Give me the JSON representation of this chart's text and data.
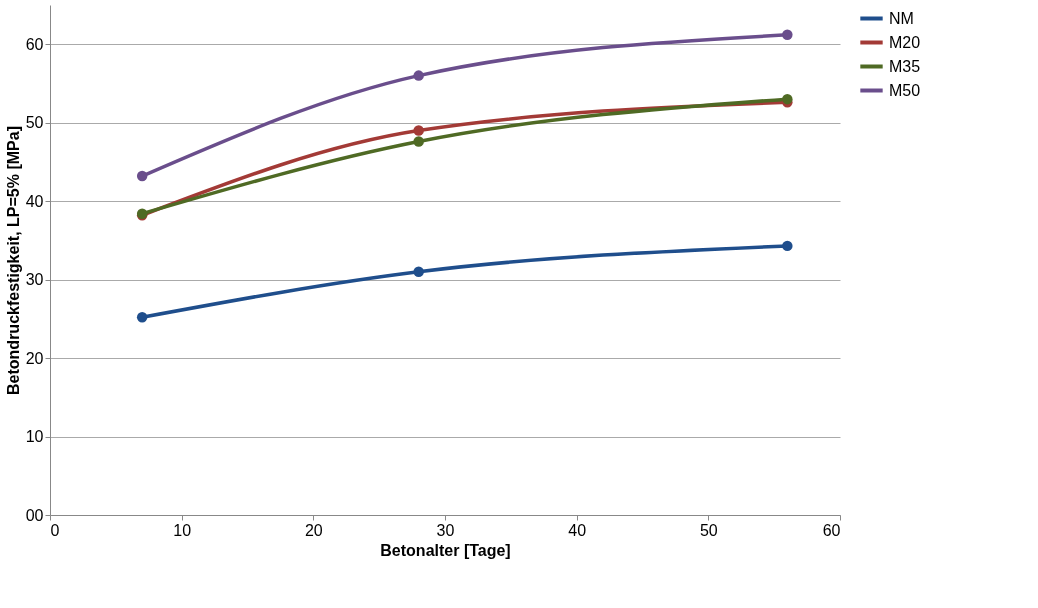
{
  "chart_data": {
    "type": "line",
    "xlabel": "Betonalter [Tage]",
    "ylabel": "Betondruckfestigkeit, LP=5% [MPa]",
    "x": [
      7,
      28,
      56
    ],
    "series": [
      {
        "name": "NM",
        "color": "#1f4e8c",
        "values": [
          25.2,
          31,
          34.3
        ]
      },
      {
        "name": "M20",
        "color": "#a33a36",
        "values": [
          38.2,
          49,
          52.6
        ]
      },
      {
        "name": "M35",
        "color": "#4f6a24",
        "values": [
          38.4,
          47.6,
          53
        ]
      },
      {
        "name": "M50",
        "color": "#6a4e8c",
        "values": [
          43.2,
          56,
          61.2
        ]
      }
    ],
    "xlim": [
      0,
      60
    ],
    "xticks": [
      0,
      10,
      20,
      30,
      40,
      50,
      60
    ],
    "ylim": [
      0,
      65
    ],
    "yticks": [
      {
        "value": 0,
        "label": "00"
      },
      10,
      20,
      30,
      40,
      50,
      60
    ],
    "grid": "y",
    "legend": "right",
    "marker": "circle",
    "line_style": "solid"
  }
}
